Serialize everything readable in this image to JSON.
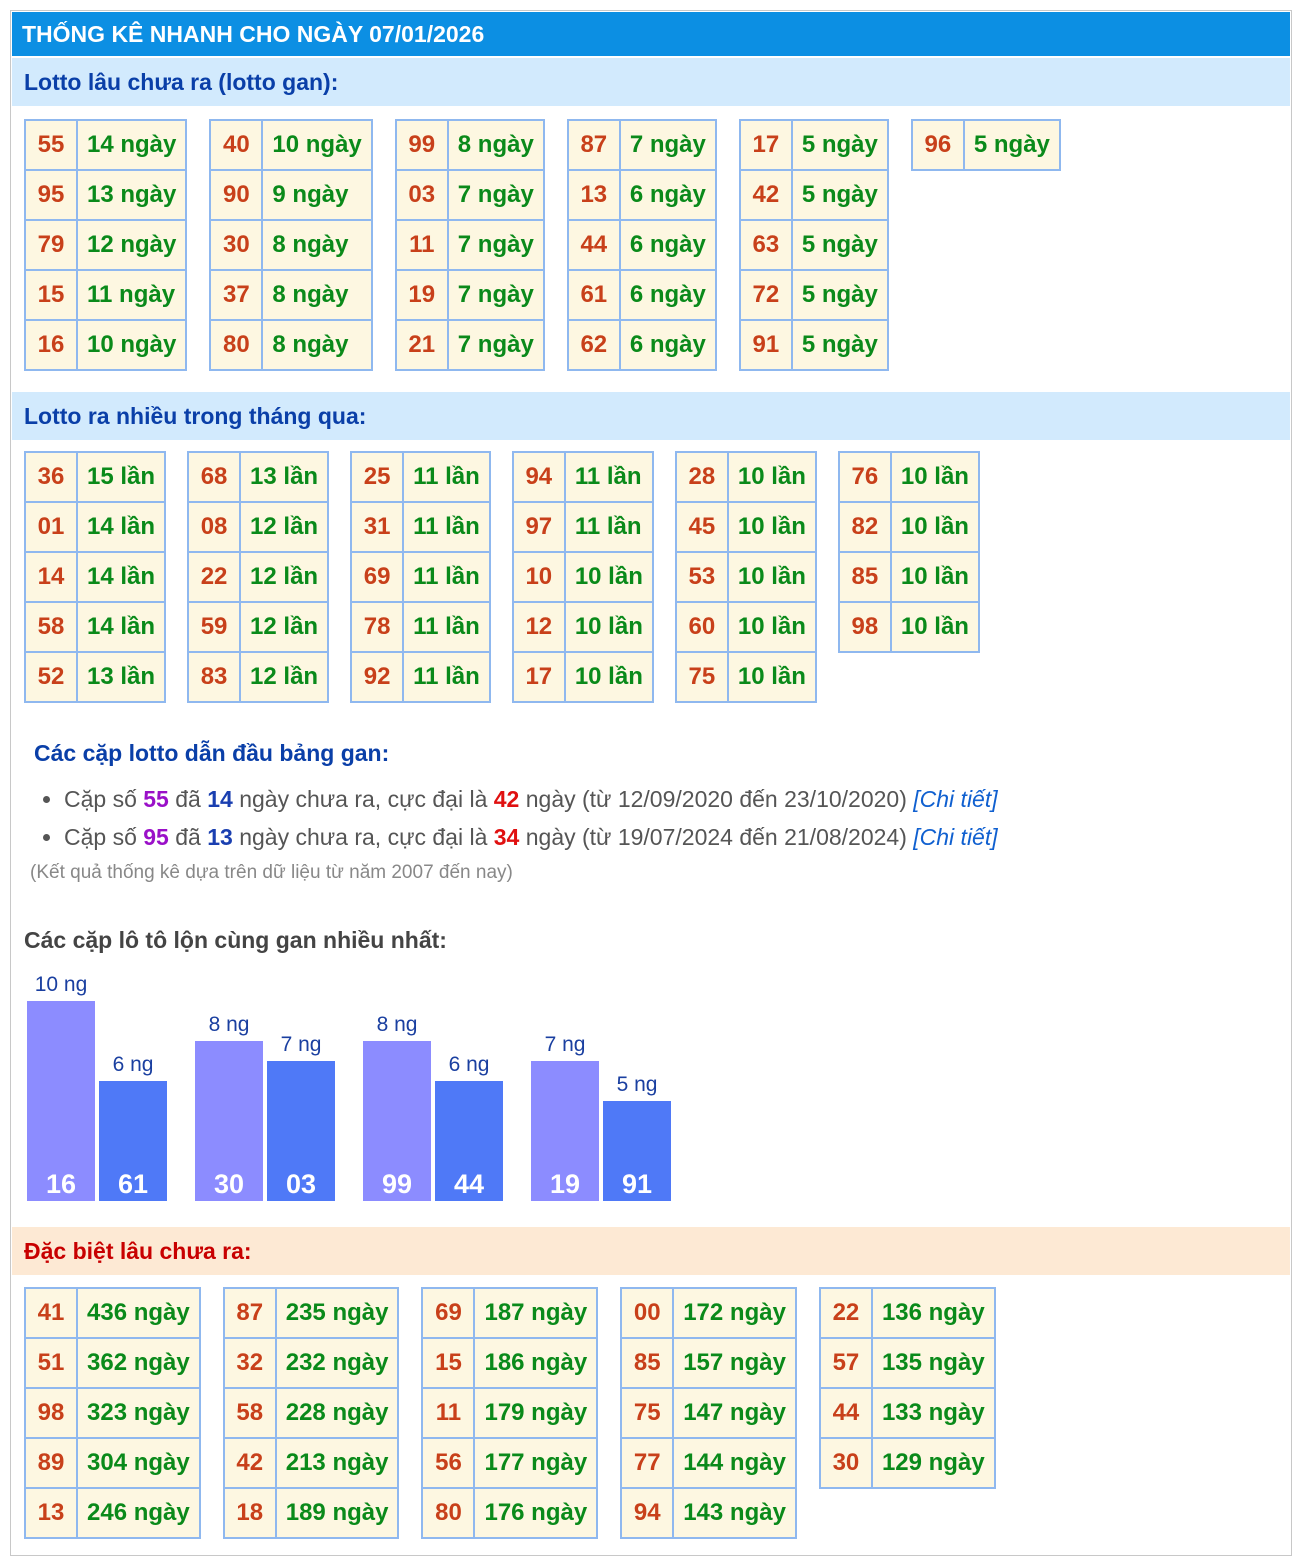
{
  "header": {
    "title": "THỐNG KÊ NHANH CHO NGÀY 07/01/2026"
  },
  "sections": [
    {
      "title": "Lotto lâu chưa ra (lotto gan):",
      "groups": [
        [
          [
            "55",
            "14 ngày"
          ],
          [
            "95",
            "13 ngày"
          ],
          [
            "79",
            "12 ngày"
          ],
          [
            "15",
            "11 ngày"
          ],
          [
            "16",
            "10 ngày"
          ]
        ],
        [
          [
            "40",
            "10 ngày"
          ],
          [
            "90",
            "9 ngày"
          ],
          [
            "30",
            "8 ngày"
          ],
          [
            "37",
            "8 ngày"
          ],
          [
            "80",
            "8 ngày"
          ]
        ],
        [
          [
            "99",
            "8 ngày"
          ],
          [
            "03",
            "7 ngày"
          ],
          [
            "11",
            "7 ngày"
          ],
          [
            "19",
            "7 ngày"
          ],
          [
            "21",
            "7 ngày"
          ]
        ],
        [
          [
            "87",
            "7 ngày"
          ],
          [
            "13",
            "6 ngày"
          ],
          [
            "44",
            "6 ngày"
          ],
          [
            "61",
            "6 ngày"
          ],
          [
            "62",
            "6 ngày"
          ]
        ],
        [
          [
            "17",
            "5 ngày"
          ],
          [
            "42",
            "5 ngày"
          ],
          [
            "63",
            "5 ngày"
          ],
          [
            "72",
            "5 ngày"
          ],
          [
            "91",
            "5 ngày"
          ]
        ],
        [
          [
            "96",
            "5 ngày"
          ]
        ]
      ]
    },
    {
      "title": "Lotto ra nhiều trong tháng qua:",
      "groups": [
        [
          [
            "36",
            "15 lần"
          ],
          [
            "01",
            "14 lần"
          ],
          [
            "14",
            "14 lần"
          ],
          [
            "58",
            "14 lần"
          ],
          [
            "52",
            "13 lần"
          ]
        ],
        [
          [
            "68",
            "13 lần"
          ],
          [
            "08",
            "12 lần"
          ],
          [
            "22",
            "12 lần"
          ],
          [
            "59",
            "12 lần"
          ],
          [
            "83",
            "12 lần"
          ]
        ],
        [
          [
            "25",
            "11 lần"
          ],
          [
            "31",
            "11 lần"
          ],
          [
            "69",
            "11 lần"
          ],
          [
            "78",
            "11 lần"
          ],
          [
            "92",
            "11 lần"
          ]
        ],
        [
          [
            "94",
            "11 lần"
          ],
          [
            "97",
            "11 lần"
          ],
          [
            "10",
            "10 lần"
          ],
          [
            "12",
            "10 lần"
          ],
          [
            "17",
            "10 lần"
          ]
        ],
        [
          [
            "28",
            "10 lần"
          ],
          [
            "45",
            "10 lần"
          ],
          [
            "53",
            "10 lần"
          ],
          [
            "60",
            "10 lần"
          ],
          [
            "75",
            "10 lần"
          ]
        ],
        [
          [
            "76",
            "10 lần"
          ],
          [
            "82",
            "10 lần"
          ],
          [
            "85",
            "10 lần"
          ],
          [
            "98",
            "10 lần"
          ]
        ]
      ]
    },
    {
      "title": "Đặc biệt lâu chưa ra:",
      "groups": [
        [
          [
            "41",
            "436 ngày"
          ],
          [
            "51",
            "362 ngày"
          ],
          [
            "98",
            "323 ngày"
          ],
          [
            "89",
            "304 ngày"
          ],
          [
            "13",
            "246 ngày"
          ]
        ],
        [
          [
            "87",
            "235 ngày"
          ],
          [
            "32",
            "232 ngày"
          ],
          [
            "58",
            "228 ngày"
          ],
          [
            "42",
            "213 ngày"
          ],
          [
            "18",
            "189 ngày"
          ]
        ],
        [
          [
            "69",
            "187 ngày"
          ],
          [
            "15",
            "186 ngày"
          ],
          [
            "11",
            "179 ngày"
          ],
          [
            "56",
            "177 ngày"
          ],
          [
            "80",
            "176 ngày"
          ]
        ],
        [
          [
            "00",
            "172 ngày"
          ],
          [
            "85",
            "157 ngày"
          ],
          [
            "75",
            "147 ngày"
          ],
          [
            "77",
            "144 ngày"
          ],
          [
            "94",
            "143 ngày"
          ]
        ],
        [
          [
            "22",
            "136 ngày"
          ],
          [
            "57",
            "135 ngày"
          ],
          [
            "44",
            "133 ngày"
          ],
          [
            "30",
            "129 ngày"
          ]
        ]
      ]
    }
  ],
  "pairs": {
    "title": "Các cặp lotto dẫn đầu bảng gan:",
    "items": [
      {
        "prefix": "Cặp số",
        "num": "55",
        "t1": "đã",
        "days": "14",
        "t2": "ngày chưa ra, cực đại là",
        "max": "42",
        "t3": "ngày (từ 12/09/2020 đến 23/10/2020)",
        "link": "[Chi tiết]"
      },
      {
        "prefix": "Cặp số",
        "num": "95",
        "t1": "đã",
        "days": "13",
        "t2": "ngày chưa ra, cực đại là",
        "max": "34",
        "t3": "ngày (từ 19/07/2024 đến 21/08/2024)",
        "link": "[Chi tiết]"
      }
    ],
    "note": "(Kết quả thống kê dựa trên dữ liệu từ năm 2007 đến nay)"
  },
  "chart_data": {
    "type": "bar",
    "title": "Các cặp lô tô lộn cùng gan nhiều nhất:",
    "categories": [
      "16",
      "61",
      "30",
      "03",
      "99",
      "44",
      "19",
      "91"
    ],
    "values": [
      10,
      6,
      8,
      7,
      8,
      6,
      7,
      5
    ],
    "value_labels": [
      "10 ng",
      "6 ng",
      "8 ng",
      "7 ng",
      "8 ng",
      "6 ng",
      "7 ng",
      "5 ng"
    ],
    "colors": [
      "#8c8cff",
      "#4f79f7"
    ]
  }
}
